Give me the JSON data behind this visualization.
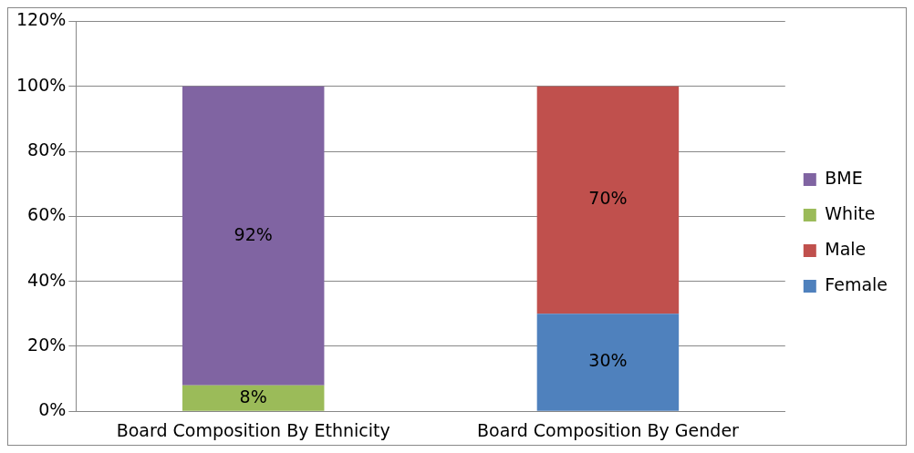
{
  "chart_data": {
    "type": "bar",
    "stacked": true,
    "categories": [
      "Board Composition By Ethnicity",
      "Board Composition By Gender"
    ],
    "series": [
      {
        "name": "Female",
        "color": "#4f81bd",
        "values": [
          null,
          30
        ],
        "value_labels": [
          null,
          "30%"
        ]
      },
      {
        "name": "Male",
        "color": "#c0504d",
        "values": [
          null,
          70
        ],
        "value_labels": [
          null,
          "70%"
        ]
      },
      {
        "name": "White",
        "color": "#9bbb59",
        "values": [
          8,
          null
        ],
        "value_labels": [
          "8%",
          null
        ]
      },
      {
        "name": "BME",
        "color": "#8064a2",
        "values": [
          92,
          null
        ],
        "value_labels": [
          "92%",
          null
        ]
      }
    ],
    "ylim": [
      0,
      120
    ],
    "yticks": [
      {
        "value": 0,
        "label": "0%"
      },
      {
        "value": 20,
        "label": "20%"
      },
      {
        "value": 40,
        "label": "40%"
      },
      {
        "value": 60,
        "label": "60%"
      },
      {
        "value": 80,
        "label": "80%"
      },
      {
        "value": 100,
        "label": "100%"
      },
      {
        "value": 120,
        "label": "120%"
      }
    ],
    "grid": "y",
    "legend": "right"
  }
}
